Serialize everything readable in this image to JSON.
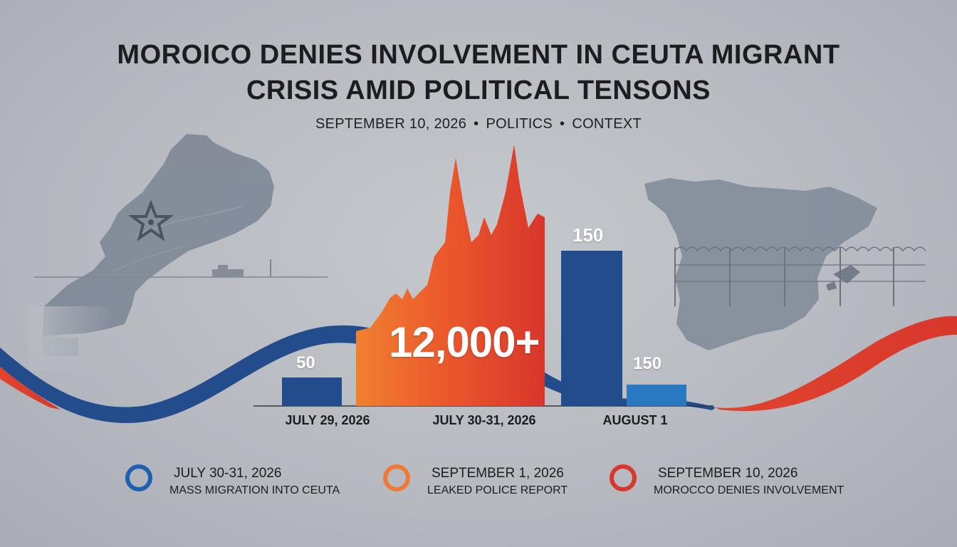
{
  "title_lines": [
    "MOROICO DENIES INVOLVEMENT IN CEUTA MIGRANT",
    "CRISIS AMID POLITICAL TENSONS"
  ],
  "meta": {
    "date": "SEPTEMBER 10, 2026",
    "section": "POLITICS",
    "tag": "CONTEXT",
    "separator": "•"
  },
  "colors": {
    "blue": "#234c8c",
    "light_blue": "#2a78c0",
    "orange": "#ee7430",
    "red": "#d93a2b",
    "map_gray": "#7f8a98"
  },
  "chart_data": {
    "type": "bar",
    "categories": [
      "JULY 29, 2026",
      "JULY 30-31, 2026",
      "AUGUST 1"
    ],
    "series": [
      {
        "category": "JULY 29, 2026",
        "bars": [
          {
            "label": "50",
            "color": "#234c8c"
          }
        ]
      },
      {
        "category": "JULY 30-31, 2026",
        "bars": [
          {
            "label": "12,000+",
            "color": "#ee7430"
          }
        ]
      },
      {
        "category": "AUGUST 1",
        "bars": [
          {
            "label": "150",
            "color": "#234c8c"
          },
          {
            "label": "150",
            "color": "#2a78c0"
          }
        ]
      }
    ],
    "data_labels": [
      "50",
      "12,000+",
      "150",
      "150"
    ]
  },
  "legend": [
    {
      "date": "JULY 30-31, 2026",
      "desc": "MASS MIGRATION INTO CEUTA",
      "color": "#1f5fb0"
    },
    {
      "date": "SEPTEMBER 1, 2026",
      "desc": "LEAKED POLICE REPORT",
      "color": "#ef7a36"
    },
    {
      "date": "SEPTEMBER 10, 2026",
      "desc": "MOROCCO DENIES INVOLVEMENT",
      "color": "#d8372b"
    }
  ]
}
